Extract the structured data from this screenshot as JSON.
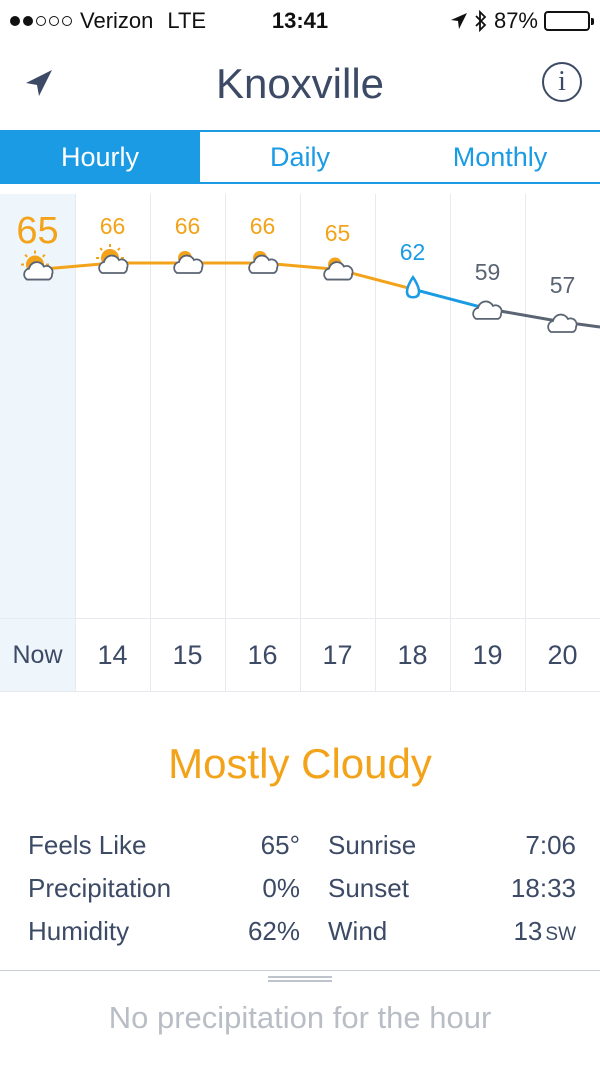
{
  "status_bar": {
    "signal_bars_filled": 2,
    "signal_bars_total": 5,
    "carrier": "Verizon",
    "network": "LTE",
    "time": "13:41",
    "battery": "87%",
    "battery_level": 0.87,
    "icons": [
      "location-arrow-icon",
      "bluetooth-icon",
      "battery-icon"
    ]
  },
  "header": {
    "city": "Knoxville",
    "location_icon": "location-arrow-icon",
    "info_label": "i"
  },
  "tabs": [
    {
      "label": "Hourly",
      "active": true
    },
    {
      "label": "Daily",
      "active": false
    },
    {
      "label": "Monthly",
      "active": false
    }
  ],
  "hourly": [
    {
      "hour": "Now",
      "temp": "65",
      "icon": "partly-sunny-icon",
      "color": "#f3a319"
    },
    {
      "hour": "14",
      "temp": "66",
      "icon": "partly-sunny-icon",
      "color": "#f3a319"
    },
    {
      "hour": "15",
      "temp": "66",
      "icon": "partly-cloudy-icon",
      "color": "#f3a319"
    },
    {
      "hour": "16",
      "temp": "66",
      "icon": "partly-cloudy-icon",
      "color": "#f3a319"
    },
    {
      "hour": "17",
      "temp": "65",
      "icon": "partly-cloudy-icon",
      "color": "#f3a319"
    },
    {
      "hour": "18",
      "temp": "62",
      "icon": "rain-drop-icon",
      "color": "#1a9be3"
    },
    {
      "hour": "19",
      "temp": "59",
      "icon": "cloud-icon",
      "color": "#5a6472"
    },
    {
      "hour": "20",
      "temp": "57",
      "icon": "cloud-icon",
      "color": "#5a6472"
    }
  ],
  "summary": "Mostly Cloudy",
  "details": {
    "feels_like_label": "Feels Like",
    "feels_like": "65°",
    "precip_label": "Precipitation",
    "precip": "0%",
    "humidity_label": "Humidity",
    "humidity": "62%",
    "sunrise_label": "Sunrise",
    "sunrise": "7:06",
    "sunset_label": "Sunset",
    "sunset": "18:33",
    "wind_label": "Wind",
    "wind": "13",
    "wind_dir": "SW"
  },
  "precip_message": "No precipitation for the hour",
  "colors": {
    "accent": "#1a9be3",
    "warm": "#f3a319",
    "cool": "#5a6472",
    "text": "#3c4a66"
  }
}
